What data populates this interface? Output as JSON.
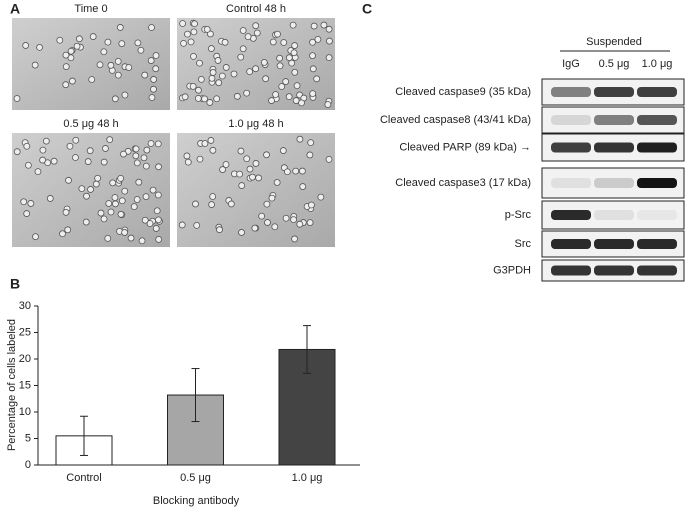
{
  "panel_labels": [
    "A",
    "B",
    "C"
  ],
  "microscopy": {
    "images": [
      {
        "label": "Time 0"
      },
      {
        "label": "Control 48 h"
      },
      {
        "label": "0.5 μg 48 h"
      },
      {
        "label": "1.0 μg 48 h"
      }
    ]
  },
  "chart_data": {
    "type": "bar",
    "y_label": "Percentage of cells labeled",
    "x_label": "Blocking antibody",
    "categories": [
      "Control",
      "0.5 μg",
      "1.0 μg"
    ],
    "values": [
      5.5,
      13.2,
      21.8
    ],
    "errors": [
      3.7,
      5.0,
      4.5
    ],
    "colors": [
      "#ffffff",
      "#a6a6a6",
      "#444444"
    ],
    "ylim": [
      0,
      30
    ],
    "yticks": [
      0,
      5,
      10,
      15,
      20,
      25,
      30
    ]
  },
  "blot": {
    "header": "Suspended",
    "lanes": [
      "IgG",
      "0.5 μg",
      "1.0 μg"
    ],
    "rows": [
      "Cleaved caspase9 (35 kDa)",
      "Cleaved caspase8 (43/41 kDa)",
      "Cleaved PARP (89 kDa) →",
      "Cleaved caspase3 (17 kDa)",
      "p-Src",
      "Src",
      "G3PDH"
    ]
  }
}
